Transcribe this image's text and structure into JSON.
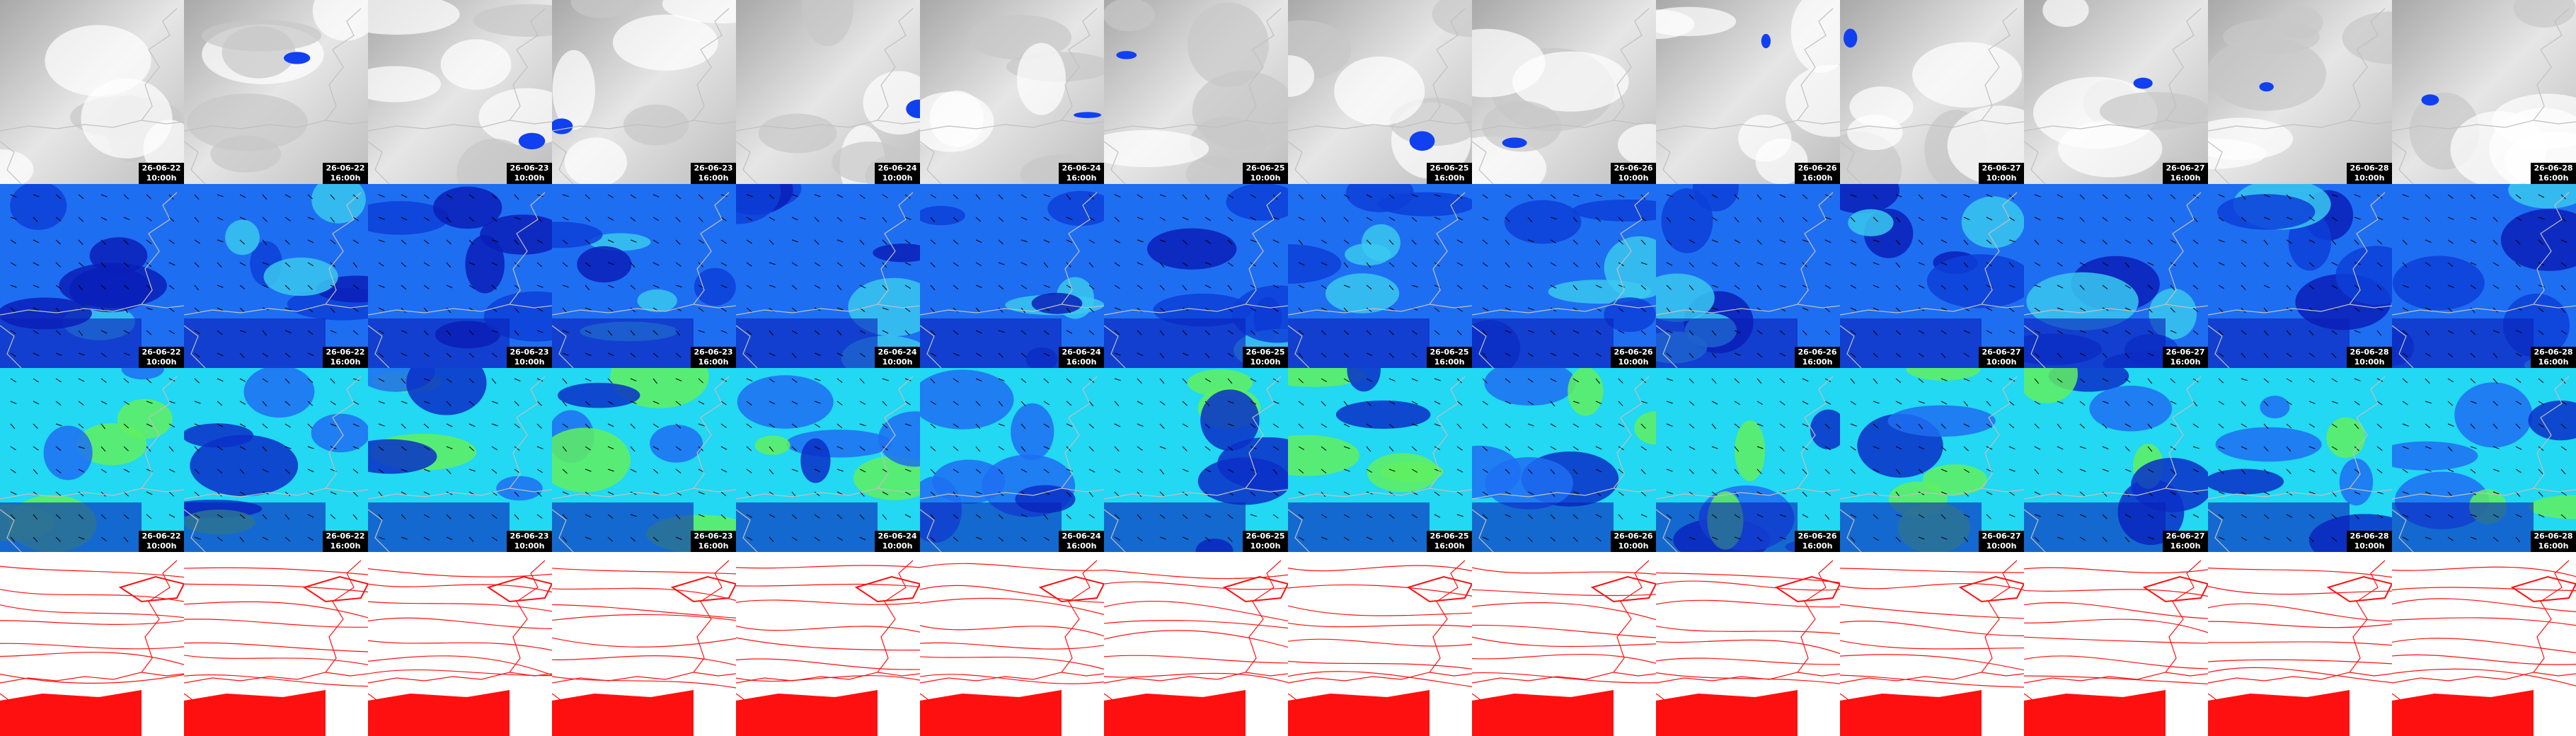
{
  "columns": [
    {
      "date": "26-06-22",
      "time": "10:00h"
    },
    {
      "date": "26-06-22",
      "time": "16:00h"
    },
    {
      "date": "26-06-23",
      "time": "10:00h"
    },
    {
      "date": "26-06-23",
      "time": "16:00h"
    },
    {
      "date": "26-06-24",
      "time": "10:00h"
    },
    {
      "date": "26-06-24",
      "time": "16:00h"
    },
    {
      "date": "26-06-25",
      "time": "10:00h"
    },
    {
      "date": "26-06-25",
      "time": "16:00h"
    },
    {
      "date": "26-06-26",
      "time": "10:00h"
    },
    {
      "date": "26-06-26",
      "time": "16:00h"
    },
    {
      "date": "26-06-27",
      "time": "10:00h"
    },
    {
      "date": "26-06-27",
      "time": "16:00h"
    },
    {
      "date": "26-06-28",
      "time": "10:00h"
    },
    {
      "date": "26-06-28",
      "time": "16:00h"
    }
  ]
}
